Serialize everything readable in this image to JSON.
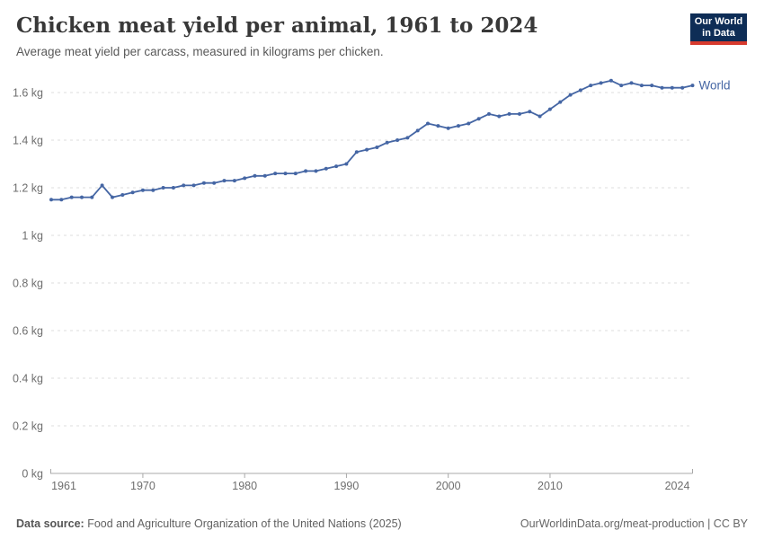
{
  "header": {
    "title": "Chicken meat yield per animal, 1961 to 2024",
    "subtitle": "Average meat yield per carcass, measured in kilograms per chicken."
  },
  "logo": {
    "line1": "Our World",
    "line2": "in Data",
    "bg_color": "#0E2D56",
    "accent_color": "#D73A2E"
  },
  "chart_data": {
    "type": "line",
    "title": "Chicken meat yield per animal, 1961 to 2024",
    "xlabel": "",
    "ylabel": "",
    "xlim": [
      1961,
      2024
    ],
    "ylim": [
      0,
      1.6
    ],
    "grid": "horizontal-dashed",
    "legend_position": "end-of-line",
    "x_ticks": [
      1961,
      1970,
      1980,
      1990,
      2000,
      2010,
      2024
    ],
    "y_ticks": [
      {
        "value": 0,
        "label": "0 kg"
      },
      {
        "value": 0.2,
        "label": "0.2 kg"
      },
      {
        "value": 0.4,
        "label": "0.4 kg"
      },
      {
        "value": 0.6,
        "label": "0.6 kg"
      },
      {
        "value": 0.8,
        "label": "0.8 kg"
      },
      {
        "value": 1,
        "label": "1 kg"
      },
      {
        "value": 1.2,
        "label": "1.2 kg"
      },
      {
        "value": 1.4,
        "label": "1.4 kg"
      },
      {
        "value": 1.6,
        "label": "1.6 kg"
      }
    ],
    "series": [
      {
        "name": "World",
        "color": "#4566A4",
        "x": [
          1961,
          1962,
          1963,
          1964,
          1965,
          1966,
          1967,
          1968,
          1969,
          1970,
          1971,
          1972,
          1973,
          1974,
          1975,
          1976,
          1977,
          1978,
          1979,
          1980,
          1981,
          1982,
          1983,
          1984,
          1985,
          1986,
          1987,
          1988,
          1989,
          1990,
          1991,
          1992,
          1993,
          1994,
          1995,
          1996,
          1997,
          1998,
          1999,
          2000,
          2001,
          2002,
          2003,
          2004,
          2005,
          2006,
          2007,
          2008,
          2009,
          2010,
          2011,
          2012,
          2013,
          2014,
          2015,
          2016,
          2017,
          2018,
          2019,
          2020,
          2021,
          2022,
          2023,
          2024
        ],
        "values": [
          1.15,
          1.15,
          1.16,
          1.16,
          1.16,
          1.21,
          1.16,
          1.17,
          1.18,
          1.19,
          1.19,
          1.2,
          1.2,
          1.21,
          1.21,
          1.22,
          1.22,
          1.23,
          1.23,
          1.24,
          1.25,
          1.25,
          1.26,
          1.26,
          1.26,
          1.27,
          1.27,
          1.28,
          1.29,
          1.3,
          1.35,
          1.36,
          1.37,
          1.39,
          1.4,
          1.41,
          1.44,
          1.47,
          1.46,
          1.45,
          1.46,
          1.47,
          1.49,
          1.51,
          1.5,
          1.51,
          1.51,
          1.52,
          1.5,
          1.53,
          1.56,
          1.59,
          1.61,
          1.63,
          1.64,
          1.65,
          1.63,
          1.64,
          1.63,
          1.63,
          1.62,
          1.62,
          1.62,
          1.63
        ]
      }
    ]
  },
  "footer": {
    "source_label": "Data source:",
    "source_text": " Food and Agriculture Organization of the United Nations (2025)",
    "link": "OurWorldinData.org/meat-production | CC BY"
  }
}
